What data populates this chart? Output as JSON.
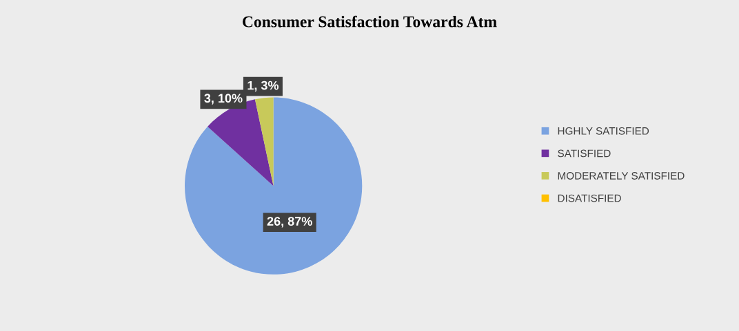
{
  "chart_data": {
    "type": "pie",
    "title": "Consumer Satisfaction Towards Atm",
    "categories": [
      "HGHLY SATISFIED",
      "SATISFIED",
      "MODERATELY SATISFIED",
      "DISATISFIED"
    ],
    "values": [
      26,
      3,
      1,
      0
    ],
    "colors": [
      "#7ba3e0",
      "#7030a0",
      "#c8c95a",
      "#ffc000"
    ],
    "value_labels": [
      "26, 87%",
      "3, 10%",
      "1, 3%",
      null
    ],
    "legend": "right"
  }
}
